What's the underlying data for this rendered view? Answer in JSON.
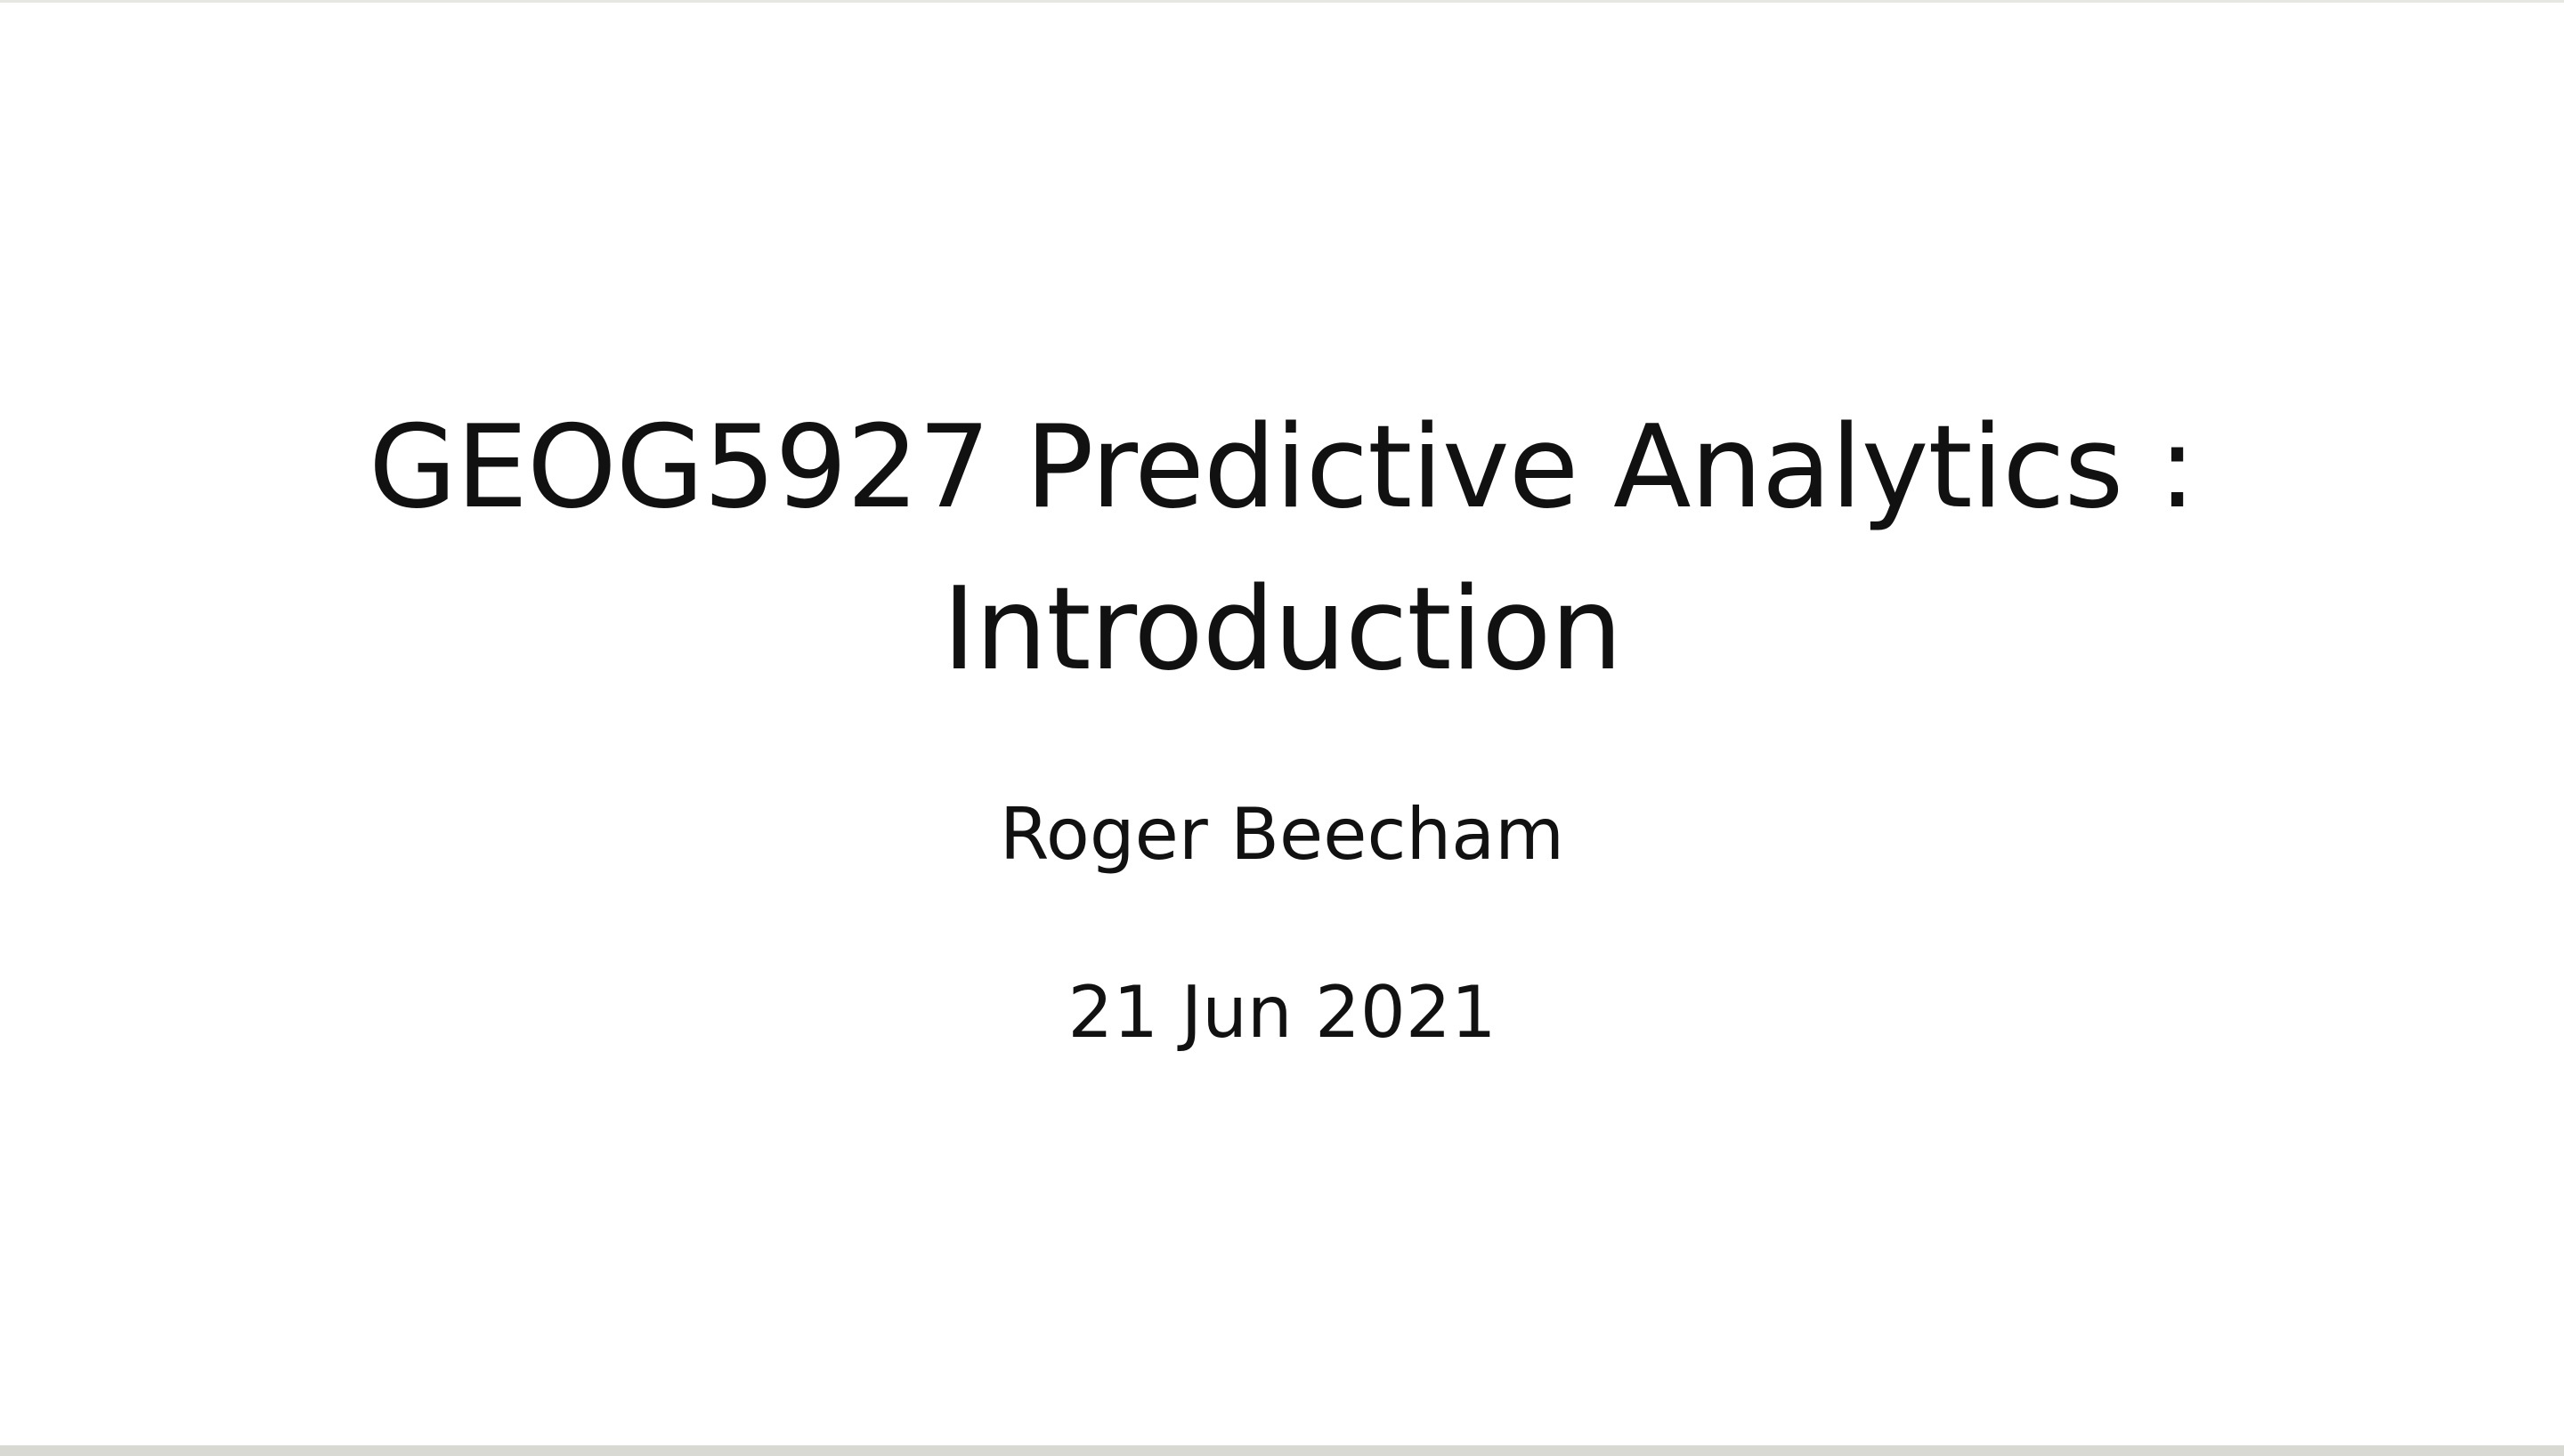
{
  "slide": {
    "title_line_1": "GEOG5927 Predictive Analytics :",
    "title_line_2": "Introduction",
    "author": "Roger Beecham",
    "date": "21 Jun 2021"
  },
  "colors": {
    "background": "#ffffff",
    "text": "#111111",
    "bottom_bar": "#d9d9d4",
    "top_rule": "#e6e6e2"
  }
}
